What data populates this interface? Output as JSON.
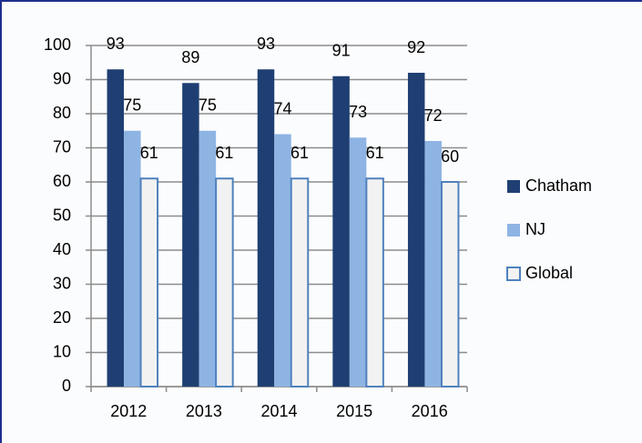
{
  "chart_data": {
    "type": "bar",
    "categories": [
      "2012",
      "2013",
      "2014",
      "2015",
      "2016"
    ],
    "series": [
      {
        "name": "Chatham",
        "color": "#1f3f73",
        "values": [
          93,
          89,
          93,
          91,
          92
        ]
      },
      {
        "name": "NJ",
        "color": "#8eb4e3",
        "values": [
          75,
          75,
          74,
          73,
          72
        ]
      },
      {
        "name": "Global",
        "color": "#f2f2f2",
        "edgecolor": "#4f81bd",
        "values": [
          61,
          61,
          61,
          61,
          60
        ]
      }
    ],
    "ylim": [
      0,
      100
    ],
    "yticks": [
      0,
      10,
      20,
      30,
      40,
      50,
      60,
      70,
      80,
      90,
      100
    ],
    "grid": true,
    "data_labels": true,
    "legend": "right"
  }
}
